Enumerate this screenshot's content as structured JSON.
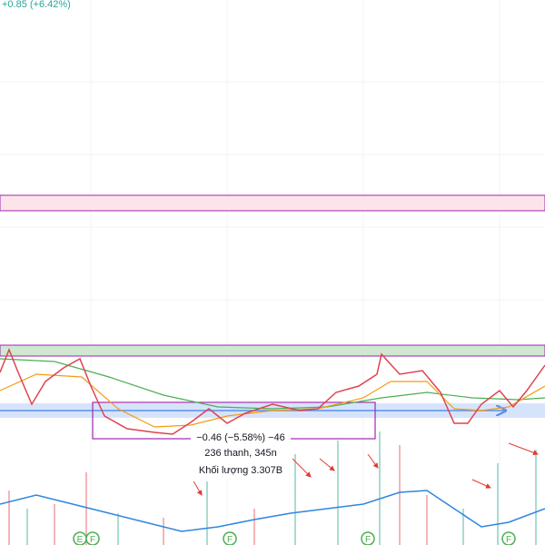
{
  "header": {
    "change": "+0.85 (+6.42%)"
  },
  "tooltip": {
    "change": "−0.46 (−5.58%) −46",
    "bars": "236 thanh, 345n",
    "volume": "Khối lượng 3.307B"
  },
  "markers": [
    "E",
    "F",
    "F",
    "F",
    "F"
  ]
}
